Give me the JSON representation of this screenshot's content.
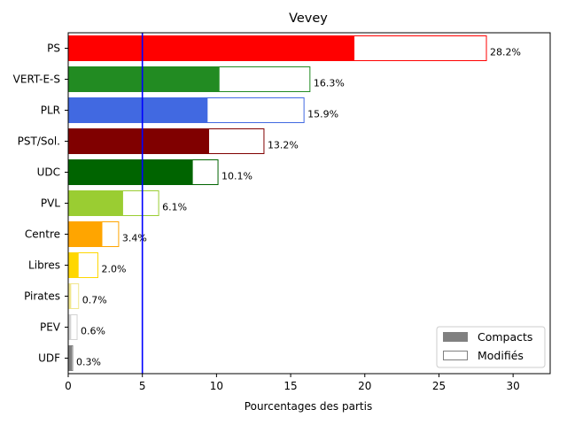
{
  "chart_data": {
    "type": "bar",
    "orientation": "horizontal",
    "title": "Vevey",
    "xlabel": "Pourcentages des partis",
    "ylabel": "",
    "xlim": [
      0,
      32.5
    ],
    "xticks": [
      0,
      5,
      10,
      15,
      20,
      25,
      30
    ],
    "reference_line": {
      "x": 5,
      "color": "#0000ff"
    },
    "categories": [
      "PS",
      "VERT-E-S",
      "PLR",
      "PST/Sol.",
      "UDC",
      "PVL",
      "Centre",
      "Libres",
      "Pirates",
      "PEV",
      "UDF"
    ],
    "colors": [
      "#ff0000",
      "#228b22",
      "#4169e1",
      "#800000",
      "#006400",
      "#9acd32",
      "#ffa500",
      "#ffd700",
      "#f0e68c",
      "#d3d3d3",
      "#808080"
    ],
    "series": [
      {
        "name": "Compacts",
        "values": [
          19.3,
          10.2,
          9.4,
          9.5,
          8.4,
          3.7,
          2.3,
          0.7,
          0.2,
          0.2,
          0.25
        ]
      },
      {
        "name": "Modifiés",
        "values": [
          28.2,
          16.3,
          15.9,
          13.2,
          10.1,
          6.1,
          3.4,
          2.0,
          0.7,
          0.6,
          0.3
        ]
      }
    ],
    "value_labels": [
      "28.2%",
      "16.3%",
      "15.9%",
      "13.2%",
      "10.1%",
      "6.1%",
      "3.4%",
      "2.0%",
      "0.7%",
      "0.6%",
      "0.3%"
    ],
    "legend": {
      "position": "lower-right",
      "entries": [
        {
          "label": "Compacts",
          "color": "#808080",
          "style": "filled"
        },
        {
          "label": "Modifiés",
          "color": "#808080",
          "style": "outline"
        }
      ]
    },
    "grid": false
  }
}
